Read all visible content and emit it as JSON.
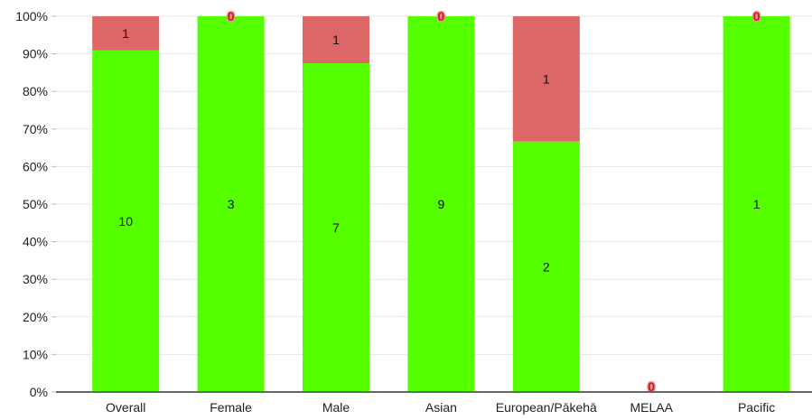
{
  "chart_data": {
    "type": "bar",
    "stacked": true,
    "percent": true,
    "categories": [
      "Overall",
      "Female",
      "Male",
      "Asian",
      "European/Pākehā",
      "MELAA",
      "Pacific"
    ],
    "series": [
      {
        "values": [
          10,
          3,
          7,
          9,
          2,
          0,
          1
        ],
        "color": "#55ff00"
      },
      {
        "values": [
          1,
          0,
          1,
          0,
          1,
          0,
          0
        ],
        "color": "#dd6666"
      }
    ],
    "zero_label_text": "0",
    "yticks": [
      "0%",
      "10%",
      "20%",
      "30%",
      "40%",
      "50%",
      "60%",
      "70%",
      "80%",
      "90%",
      "100%"
    ],
    "ylim": [
      0,
      100
    ],
    "grid": true,
    "legend": "none",
    "axis_color": "#666666",
    "grid_color": "#e6e6e6",
    "zero_label_color": "#b22222"
  }
}
